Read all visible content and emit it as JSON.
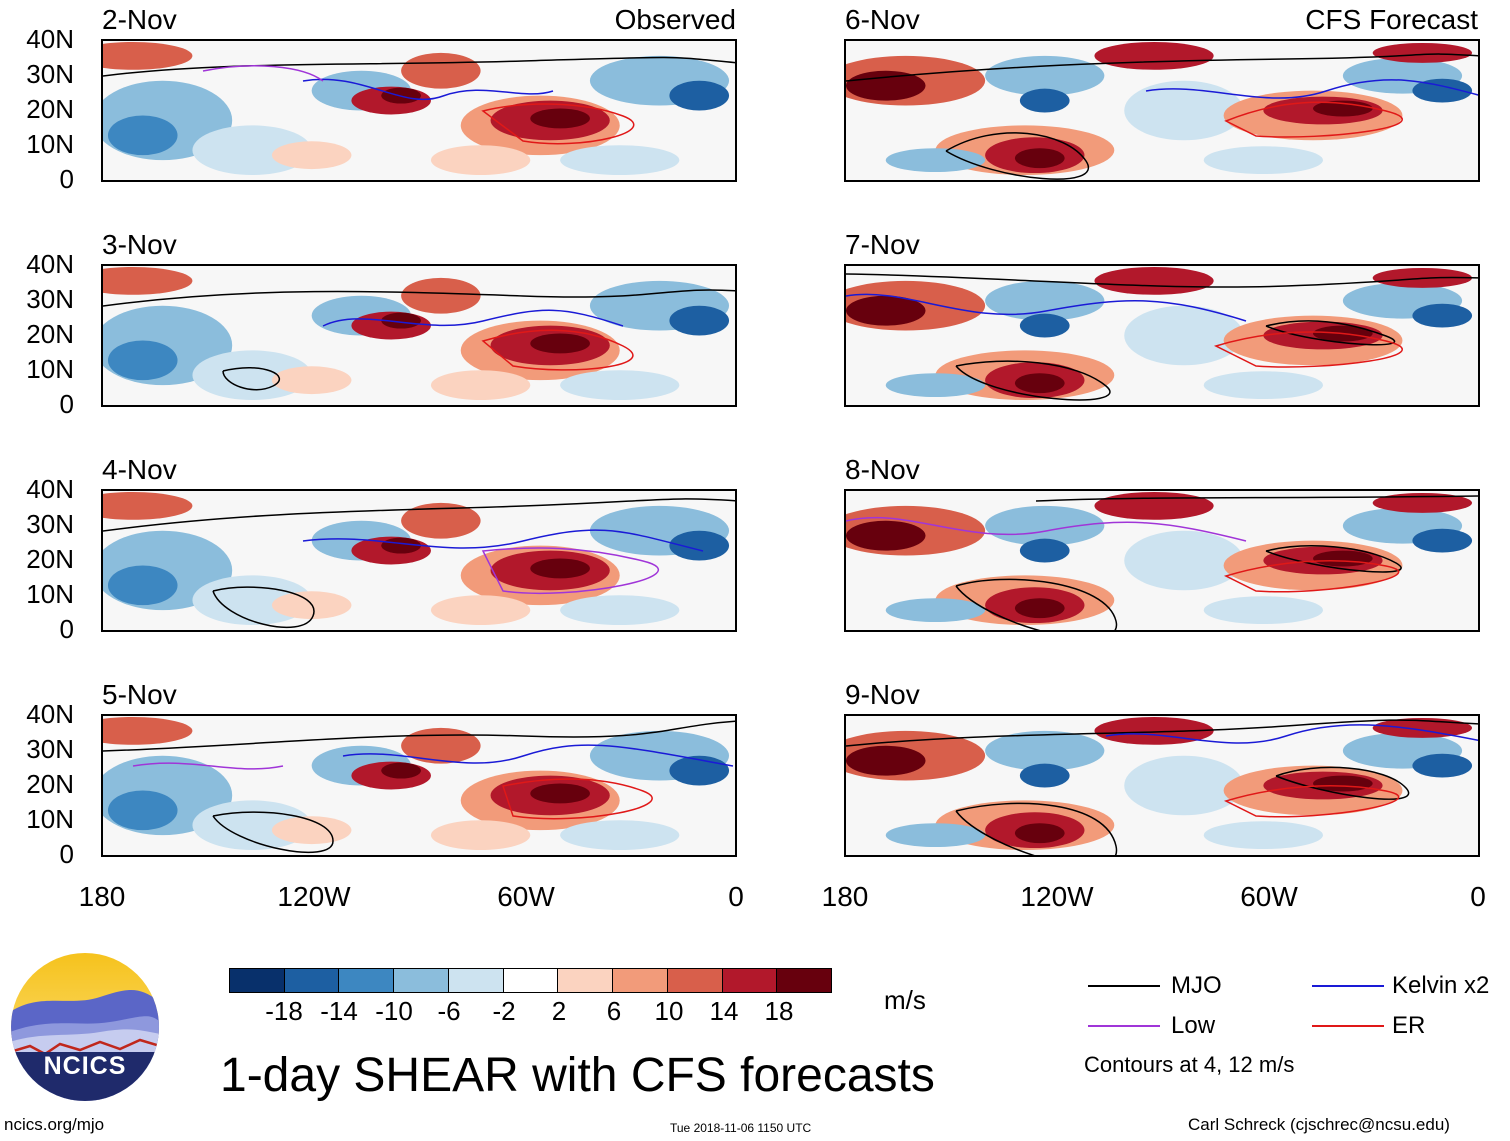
{
  "header": {
    "left_tag": "Observed",
    "right_tag": "CFS Forecast"
  },
  "panels": {
    "observed": [
      "2-Nov",
      "3-Nov",
      "4-Nov",
      "5-Nov"
    ],
    "forecast": [
      "6-Nov",
      "7-Nov",
      "8-Nov",
      "9-Nov"
    ]
  },
  "axes": {
    "lat_labels": [
      "40N",
      "30N",
      "20N",
      "10N",
      "0"
    ],
    "lon_labels": [
      "180",
      "120W",
      "60W",
      "0"
    ]
  },
  "colorbar": {
    "labels": [
      "-18",
      "-14",
      "-10",
      "-6",
      "-2",
      "2",
      "6",
      "10",
      "14",
      "18"
    ],
    "colors": [
      "#08306b",
      "#1d5fa2",
      "#3d87c1",
      "#8bbddc",
      "#cde3f0",
      "#ffffff",
      "#fbd3c0",
      "#f29b7a",
      "#d85f4b",
      "#b2182b",
      "#67000d"
    ],
    "units": "m/s"
  },
  "legend": {
    "items": [
      {
        "label": "MJO",
        "color": "#000000"
      },
      {
        "label": "Kelvin x2",
        "color": "#1a1ad6"
      },
      {
        "label": "Low",
        "color": "#a035d8"
      },
      {
        "label": "ER",
        "color": "#e01818"
      }
    ],
    "note": "Contours at 4, 12 m/s"
  },
  "logo": {
    "text": "NCICS"
  },
  "title": "1-day SHEAR with CFS forecasts",
  "footer": {
    "url": "ncics.org/mjo",
    "timestamp": "Tue 2018-11-06 1150 UTC",
    "credit": "Carl Schreck (cjschrec@ncsu.edu)"
  }
}
